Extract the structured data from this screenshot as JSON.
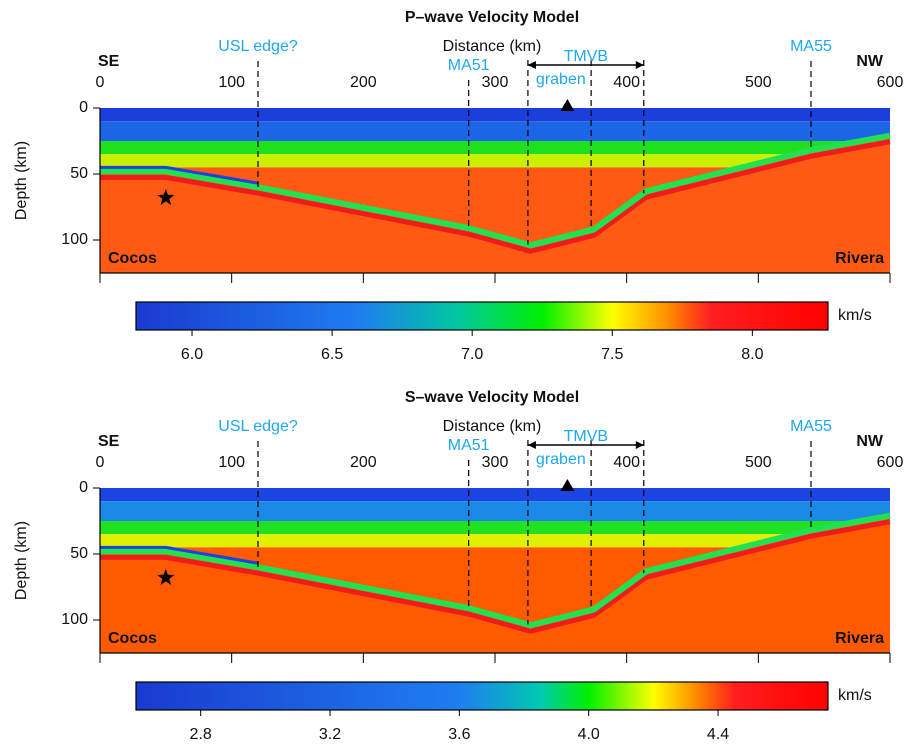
{
  "chart_data": [
    {
      "type": "cross-section",
      "title": "P–wave Velocity Model",
      "xlabel": "Distance (km)",
      "ylabel": "Depth (km)",
      "left_label": "SE",
      "right_label": "NW",
      "xlim": [
        0,
        600
      ],
      "xticks": [
        0,
        100,
        200,
        300,
        400,
        500,
        600
      ],
      "ylim": [
        0,
        125
      ],
      "yticks": [
        0,
        50,
        100
      ],
      "layers": [
        {
          "top": 0,
          "bottom": 10,
          "color": "#1c3fdc"
        },
        {
          "top": 10,
          "bottom": 25,
          "color": "#1c66e6"
        },
        {
          "top": 25,
          "bottom": 35,
          "color": "#1ee01e"
        },
        {
          "top": 35,
          "bottom": 45,
          "color": "#c8f000"
        },
        {
          "top": 45,
          "bottom": 125,
          "color": "#ff5a14"
        }
      ],
      "slab": {
        "x": [
          0,
          50,
          120,
          280,
          327,
          375,
          415,
          540,
          600
        ],
        "depth": [
          48,
          48,
          60,
          91,
          104,
          92,
          63,
          32,
          21
        ],
        "color": "#22e050",
        "lower_color": "#ee1c1c",
        "upper_color": "#2040e0",
        "upper_end": 120
      },
      "markers": [
        {
          "x": 120,
          "label": "USL edge?"
        },
        {
          "x": 280,
          "label": "MA51"
        },
        {
          "x": 325
        },
        {
          "x": 373
        },
        {
          "x": 413
        },
        {
          "x": 540,
          "label": "MA55"
        }
      ],
      "span": {
        "from": 325,
        "to": 413,
        "label": "TMVB",
        "sublabel": "graben"
      },
      "station": 355,
      "event": {
        "x": 50,
        "depth": 68
      },
      "plate_labels": [
        "Cocos",
        "Rivera"
      ],
      "colorbar": {
        "unit": "km/s",
        "lim": [
          5.8,
          8.27
        ],
        "ticks": [
          {
            "value": 6,
            "label": "6.0"
          },
          6.5,
          {
            "value": 7,
            "label": "7.0"
          },
          7.5,
          {
            "value": 8,
            "label": "8.0"
          }
        ],
        "stops": [
          {
            "value": 5.8,
            "color": "#1a3ad0"
          },
          {
            "value": 6.6,
            "color": "#1e7ef0"
          },
          {
            "value": 6.95,
            "color": "#00c8a0"
          },
          {
            "value": 7.25,
            "color": "#00f000"
          },
          {
            "value": 7.5,
            "color": "#ffff00"
          },
          {
            "value": 7.7,
            "color": "#ff8c00"
          },
          {
            "value": 7.85,
            "color": "#ff1e1e"
          },
          {
            "value": 8.27,
            "color": "#ff0000"
          }
        ]
      }
    },
    {
      "type": "cross-section",
      "title": "S–wave Velocity Model",
      "xlabel": "Distance (km)",
      "ylabel": "Depth (km)",
      "left_label": "SE",
      "right_label": "NW",
      "xlim": [
        0,
        600
      ],
      "xticks": [
        0,
        100,
        200,
        300,
        400,
        500,
        600
      ],
      "ylim": [
        0,
        125
      ],
      "yticks": [
        0,
        50,
        100
      ],
      "layers": [
        {
          "top": 0,
          "bottom": 10,
          "color": "#1c44e0"
        },
        {
          "top": 10,
          "bottom": 25,
          "color": "#1a8ae6"
        },
        {
          "top": 25,
          "bottom": 35,
          "color": "#22e022"
        },
        {
          "top": 35,
          "bottom": 45,
          "color": "#e0f000"
        },
        {
          "top": 45,
          "bottom": 125,
          "color": "#ff5a00"
        }
      ],
      "slab": {
        "x": [
          0,
          50,
          120,
          280,
          327,
          375,
          415,
          540,
          600
        ],
        "depth": [
          48,
          48,
          60,
          91,
          104,
          92,
          63,
          32,
          21
        ],
        "color": "#22e050",
        "lower_color": "#ee1c1c",
        "upper_color": "#2040e0",
        "upper_end": 120
      },
      "markers": [
        {
          "x": 120,
          "label": "USL edge?"
        },
        {
          "x": 280,
          "label": "MA51"
        },
        {
          "x": 325
        },
        {
          "x": 373
        },
        {
          "x": 413
        },
        {
          "x": 540,
          "label": "MA55"
        }
      ],
      "span": {
        "from": 325,
        "to": 413,
        "label": "TMVB",
        "sublabel": "graben"
      },
      "station": 355,
      "event": {
        "x": 50,
        "depth": 68
      },
      "plate_labels": [
        "Cocos",
        "Rivera"
      ],
      "colorbar": {
        "unit": "km/s",
        "lim": [
          2.6,
          4.74
        ],
        "ticks": [
          2.8,
          3.2,
          3.6,
          {
            "value": 4,
            "label": "4.0"
          },
          4.4
        ],
        "stops": [
          {
            "value": 2.6,
            "color": "#1a3ad0"
          },
          {
            "value": 3.6,
            "color": "#1e7ef0"
          },
          {
            "value": 3.85,
            "color": "#00c8b0"
          },
          {
            "value": 4.0,
            "color": "#00f000"
          },
          {
            "value": 4.2,
            "color": "#ffff00"
          },
          {
            "value": 4.33,
            "color": "#ff8c00"
          },
          {
            "value": 4.45,
            "color": "#ff1e1e"
          },
          {
            "value": 4.74,
            "color": "#ff0000"
          }
        ]
      }
    }
  ]
}
